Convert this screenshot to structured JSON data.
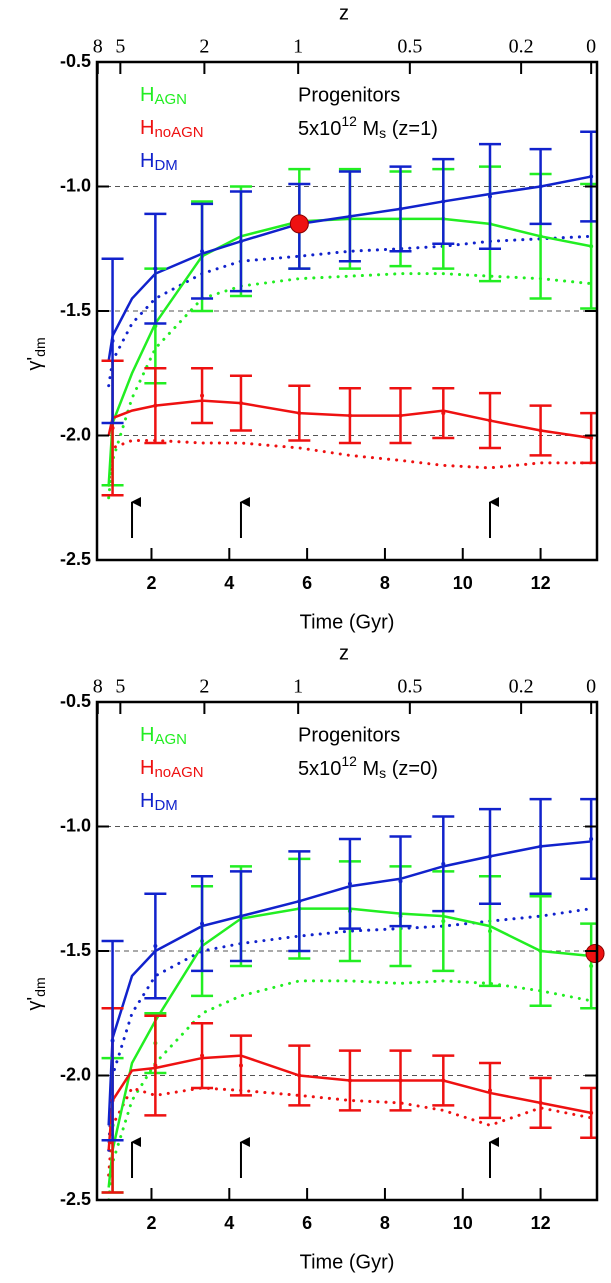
{
  "chart_data": [
    {
      "type": "line",
      "title": "Progenitors",
      "mass_label": [
        "5x10",
        "12",
        " M",
        "s",
        " (z=1)"
      ],
      "xlabel": "Time (Gyr)",
      "x2label": "z",
      "ylabel": [
        "γ'",
        "dm"
      ],
      "xlim": [
        0.6,
        13.45
      ],
      "ylim": [
        -2.5,
        -0.5
      ],
      "xticks": [
        2,
        4,
        6,
        8,
        10,
        12
      ],
      "x2ticks": [
        {
          "value": 0.62,
          "label": "8"
        },
        {
          "value": 1.2,
          "label": "5"
        },
        {
          "value": 3.36,
          "label": "2"
        },
        {
          "value": 5.77,
          "label": "1"
        },
        {
          "value": 8.64,
          "label": "0.5"
        },
        {
          "value": 11.5,
          "label": "0.2"
        },
        {
          "value": 13.3,
          "label": "0"
        }
      ],
      "yticks": [
        -0.5,
        {
          "value": -1,
          "label": "-1.0"
        },
        -1.5,
        {
          "value": -2,
          "label": "-2.0"
        },
        -2.5
      ],
      "reference_lines": [
        -1,
        -1.5,
        -2
      ],
      "arrows_x": [
        1.5,
        4.3,
        10.7
      ],
      "x": [
        0.9,
        1.0,
        1.5,
        2.1,
        3.3,
        4.3,
        5.8,
        7.1,
        8.4,
        9.5,
        10.7,
        12.0,
        13.3
      ],
      "errbar_x": [
        1.0,
        2.1,
        3.3,
        4.3,
        5.8,
        7.1,
        8.4,
        9.5,
        10.7,
        12.0,
        13.3
      ],
      "series": [
        {
          "name": "H",
          "name_sub": "AGN",
          "color": "#22ee22",
          "values": [
            -2.2,
            -1.95,
            -1.75,
            -1.55,
            -1.28,
            -1.2,
            -1.14,
            -1.13,
            -1.13,
            -1.13,
            -1.15,
            -1.2,
            -1.24
          ],
          "dotted_values": [
            -2.25,
            -2.1,
            -1.85,
            -1.65,
            -1.45,
            -1.4,
            -1.37,
            -1.36,
            -1.35,
            -1.35,
            -1.36,
            -1.37,
            -1.39
          ],
          "errbar_values": [
            -1.95,
            -1.56,
            -1.28,
            -1.22,
            -1.13,
            -1.13,
            -1.13,
            -1.13,
            -1.15,
            -1.2,
            -1.24
          ],
          "errbar_errors": [
            0.25,
            0.23,
            0.22,
            0.22,
            0.2,
            0.2,
            0.19,
            0.2,
            0.23,
            0.25,
            0.25
          ]
        },
        {
          "name": "H",
          "name_sub": "noAGN",
          "color": "#ee1111",
          "values": [
            -2.0,
            -1.93,
            -1.9,
            -1.88,
            -1.86,
            -1.87,
            -1.91,
            -1.92,
            -1.92,
            -1.9,
            -1.94,
            -1.98,
            -2.01
          ],
          "dotted_values": [
            -2.2,
            -2.05,
            -2.02,
            -2.02,
            -2.03,
            -2.03,
            -2.05,
            -2.08,
            -2.1,
            -2.12,
            -2.13,
            -2.11,
            -2.11
          ],
          "errbar_values": [
            -1.97,
            -1.88,
            -1.84,
            -1.87,
            -1.91,
            -1.92,
            -1.92,
            -1.91,
            -1.94,
            -1.98,
            -2.01
          ],
          "errbar_errors": [
            0.27,
            0.15,
            0.11,
            0.11,
            0.11,
            0.11,
            0.11,
            0.1,
            0.11,
            0.1,
            0.1
          ]
        },
        {
          "name": "H",
          "name_sub": "DM",
          "color": "#1122cc",
          "values": [
            -1.7,
            -1.6,
            -1.45,
            -1.35,
            -1.27,
            -1.22,
            -1.15,
            -1.12,
            -1.09,
            -1.06,
            -1.03,
            -1.0,
            -0.96
          ],
          "dotted_values": [
            -1.8,
            -1.7,
            -1.55,
            -1.45,
            -1.35,
            -1.3,
            -1.28,
            -1.26,
            -1.25,
            -1.24,
            -1.22,
            -1.21,
            -1.2
          ],
          "errbar_values": [
            -1.62,
            -1.33,
            -1.26,
            -1.22,
            -1.16,
            -1.12,
            -1.09,
            -1.06,
            -1.04,
            -1.0,
            -0.96
          ],
          "errbar_errors": [
            0.33,
            0.22,
            0.19,
            0.2,
            0.17,
            0.18,
            0.17,
            0.17,
            0.21,
            0.15,
            0.18
          ]
        }
      ],
      "highlight": {
        "x": 5.8,
        "y": -1.15,
        "color": "#ee1111"
      }
    },
    {
      "type": "line",
      "title": "Progenitors",
      "mass_label": [
        "5x10",
        "12",
        " M",
        "s",
        " (z=0)"
      ],
      "xlabel": "Time (Gyr)",
      "x2label": "z",
      "ylabel": [
        "γ'",
        "dm"
      ],
      "xlim": [
        0.6,
        13.45
      ],
      "ylim": [
        -2.5,
        -0.5
      ],
      "xticks": [
        2,
        4,
        6,
        8,
        10,
        12
      ],
      "x2ticks": [
        {
          "value": 0.62,
          "label": "8"
        },
        {
          "value": 1.2,
          "label": "5"
        },
        {
          "value": 3.36,
          "label": "2"
        },
        {
          "value": 5.77,
          "label": "1"
        },
        {
          "value": 8.64,
          "label": "0.5"
        },
        {
          "value": 11.5,
          "label": "0.2"
        },
        {
          "value": 13.3,
          "label": "0"
        }
      ],
      "yticks": [
        -0.5,
        {
          "value": -1,
          "label": "-1.0"
        },
        -1.5,
        {
          "value": -2,
          "label": "-2.0"
        },
        -2.5
      ],
      "reference_lines": [
        -1,
        -1.5,
        -2
      ],
      "arrows_x": [
        1.5,
        4.3,
        10.7
      ],
      "x": [
        0.9,
        1.0,
        1.5,
        2.1,
        3.3,
        4.3,
        5.8,
        7.1,
        8.4,
        9.5,
        10.7,
        12.0,
        13.3
      ],
      "errbar_x": [
        1.0,
        2.1,
        3.3,
        4.3,
        5.8,
        7.1,
        8.4,
        9.5,
        10.7,
        12.0,
        13.3
      ],
      "series": [
        {
          "name": "H",
          "name_sub": "AGN",
          "color": "#22ee22",
          "values": [
            -2.45,
            -2.3,
            -1.95,
            -1.78,
            -1.48,
            -1.37,
            -1.33,
            -1.33,
            -1.35,
            -1.36,
            -1.4,
            -1.5,
            -1.52
          ],
          "dotted_values": [
            -2.5,
            -2.35,
            -2.1,
            -1.95,
            -1.75,
            -1.68,
            -1.62,
            -1.62,
            -1.63,
            -1.62,
            -1.63,
            -1.66,
            -1.7
          ],
          "errbar_values": [
            -2.2,
            -1.87,
            -1.46,
            -1.36,
            -1.33,
            -1.34,
            -1.36,
            -1.38,
            -1.42,
            -1.5,
            -1.56
          ],
          "errbar_errors": [
            0.27,
            0.12,
            0.22,
            0.2,
            0.2,
            0.2,
            0.2,
            0.2,
            0.22,
            0.22,
            0.17
          ]
        },
        {
          "name": "H",
          "name_sub": "noAGN",
          "color": "#ee1111",
          "values": [
            -2.3,
            -2.1,
            -1.98,
            -1.97,
            -1.93,
            -1.92,
            -2.0,
            -2.02,
            -2.02,
            -2.02,
            -2.07,
            -2.11,
            -2.15
          ],
          "dotted_values": [
            -2.4,
            -2.2,
            -2.05,
            -2.08,
            -2.05,
            -2.06,
            -2.08,
            -2.1,
            -2.11,
            -2.14,
            -2.2,
            -2.13,
            -2.17
          ],
          "errbar_values": [
            -2.1,
            -1.96,
            -1.92,
            -1.96,
            -2.0,
            -2.02,
            -2.02,
            -2.02,
            -2.06,
            -2.11,
            -2.15
          ],
          "errbar_errors": [
            0.37,
            0.2,
            0.13,
            0.12,
            0.12,
            0.12,
            0.12,
            0.1,
            0.11,
            0.1,
            0.1
          ]
        },
        {
          "name": "H",
          "name_sub": "DM",
          "color": "#1122cc",
          "values": [
            -2.2,
            -1.85,
            -1.6,
            -1.5,
            -1.4,
            -1.36,
            -1.3,
            -1.24,
            -1.21,
            -1.16,
            -1.12,
            -1.08,
            -1.06
          ],
          "dotted_values": [
            -2.3,
            -2.0,
            -1.75,
            -1.6,
            -1.5,
            -1.47,
            -1.44,
            -1.42,
            -1.41,
            -1.4,
            -1.38,
            -1.36,
            -1.33
          ],
          "errbar_values": [
            -1.86,
            -1.48,
            -1.39,
            -1.36,
            -1.3,
            -1.23,
            -1.22,
            -1.15,
            -1.12,
            -1.08,
            -1.05
          ],
          "errbar_errors": [
            0.4,
            0.21,
            0.19,
            0.18,
            0.2,
            0.18,
            0.18,
            0.19,
            0.19,
            0.19,
            0.16
          ]
        }
      ],
      "highlight": {
        "x": 13.4,
        "y": -1.51,
        "color": "#ee1111"
      }
    }
  ]
}
